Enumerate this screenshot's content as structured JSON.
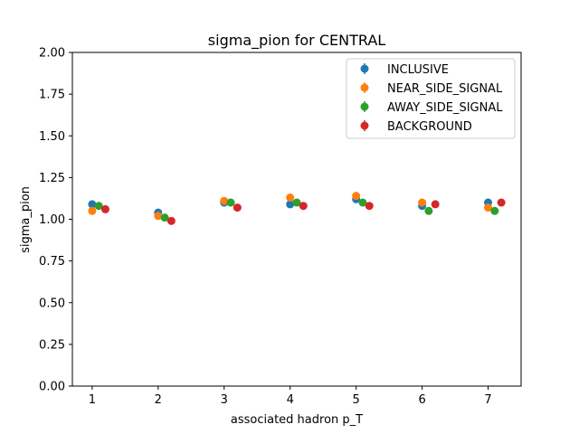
{
  "chart_data": {
    "type": "scatter",
    "title": "sigma_pion for CENTRAL",
    "xlabel": "associated hadron p_T",
    "ylabel": "sigma_pion",
    "xlim": [
      0.7,
      7.5
    ],
    "ylim": [
      0.0,
      2.0
    ],
    "xticks": [
      "1",
      "2",
      "3",
      "4",
      "5",
      "6",
      "7"
    ],
    "yticks": [
      "0.00",
      "0.25",
      "0.50",
      "0.75",
      "1.00",
      "1.25",
      "1.50",
      "1.75",
      "2.00"
    ],
    "grid": false,
    "legend_position": "top-right",
    "series": [
      {
        "name": "INCLUSIVE",
        "color": "#1f77b4",
        "x": [
          1.0,
          2.0,
          3.0,
          4.0,
          5.0,
          6.0,
          7.0
        ],
        "y": [
          1.09,
          1.04,
          1.1,
          1.09,
          1.12,
          1.08,
          1.1
        ],
        "err": [
          0.01,
          0.01,
          0.01,
          0.01,
          0.01,
          0.01,
          0.01
        ]
      },
      {
        "name": "NEAR_SIDE_SIGNAL",
        "color": "#ff7f0e",
        "x": [
          1.0,
          2.0,
          3.0,
          4.0,
          5.0,
          6.0,
          7.0
        ],
        "y": [
          1.05,
          1.02,
          1.11,
          1.13,
          1.14,
          1.1,
          1.07
        ],
        "err": [
          0.01,
          0.01,
          0.01,
          0.01,
          0.01,
          0.01,
          0.01
        ]
      },
      {
        "name": "AWAY_SIDE_SIGNAL",
        "color": "#2ca02c",
        "x": [
          1.1,
          2.1,
          3.1,
          4.1,
          5.1,
          6.1,
          7.1
        ],
        "y": [
          1.08,
          1.01,
          1.1,
          1.1,
          1.1,
          1.05,
          1.05
        ],
        "err": [
          0.01,
          0.01,
          0.01,
          0.01,
          0.01,
          0.01,
          0.01
        ]
      },
      {
        "name": "BACKGROUND",
        "color": "#d62728",
        "x": [
          1.2,
          2.2,
          3.2,
          4.2,
          5.2,
          6.2,
          7.2
        ],
        "y": [
          1.06,
          0.99,
          1.07,
          1.08,
          1.08,
          1.09,
          1.1
        ],
        "err": [
          0.01,
          0.01,
          0.01,
          0.01,
          0.01,
          0.02,
          0.01
        ]
      }
    ]
  }
}
